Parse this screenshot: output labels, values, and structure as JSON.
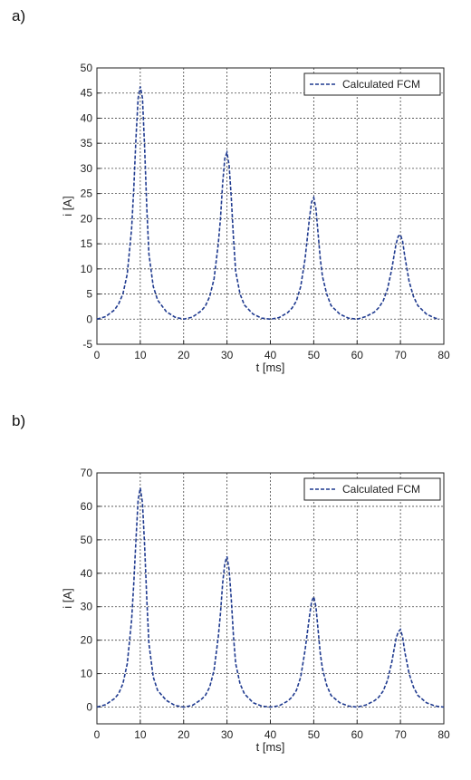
{
  "figure": {
    "panels": [
      {
        "label": "a)"
      },
      {
        "label": "b)"
      }
    ]
  },
  "chart_data": [
    {
      "type": "line",
      "title": "",
      "xlabel": "t [ms]",
      "ylabel": "i [A]",
      "xlim": [
        0,
        80
      ],
      "ylim": [
        -5,
        50
      ],
      "xticks": [
        0,
        10,
        20,
        30,
        40,
        50,
        60,
        70,
        80
      ],
      "yticks": [
        -5,
        0,
        5,
        10,
        15,
        20,
        25,
        30,
        35,
        40,
        45,
        50
      ],
      "grid": true,
      "legend_position": "top-right",
      "series": [
        {
          "name": "Calculated FCM",
          "color": "#1f3a8f",
          "style": "dashed",
          "x": [
            0,
            2,
            4,
            5,
            6,
            7,
            8,
            8.5,
            9,
            9.5,
            10,
            10.5,
            11,
            11.5,
            12,
            13,
            14,
            16,
            18,
            20,
            22,
            24,
            25,
            26,
            27,
            28,
            28.5,
            29,
            29.5,
            30,
            30.5,
            31,
            31.5,
            32,
            33,
            34,
            36,
            38,
            40,
            42,
            44,
            45,
            46,
            47,
            48,
            48.5,
            49,
            49.5,
            50,
            50.5,
            51,
            51.5,
            52,
            53,
            54,
            56,
            58,
            60,
            62,
            64,
            65,
            66,
            67,
            68,
            68.5,
            69,
            69.5,
            70,
            70.5,
            71,
            72,
            73,
            74,
            76,
            78,
            79
          ],
          "y": [
            0,
            0.5,
            1.8,
            3,
            5,
            9,
            18,
            26,
            36,
            44,
            46.3,
            44,
            34,
            22,
            13,
            6.5,
            3.8,
            1.5,
            0.4,
            0,
            0.4,
            1.6,
            2.6,
            4.5,
            8,
            15,
            20,
            27,
            32,
            33.2,
            30.5,
            24,
            16,
            9.5,
            5,
            2.8,
            1,
            0.2,
            0,
            0.3,
            1.3,
            2.2,
            3.6,
            6.5,
            12,
            16,
            20,
            23.3,
            24.2,
            22,
            17,
            12,
            8.5,
            5,
            2.7,
            1,
            0.2,
            0,
            0.5,
            1.4,
            2.3,
            3.6,
            6,
            10,
            12.5,
            15,
            16.5,
            16.8,
            15.5,
            12.5,
            7.5,
            4.5,
            2.7,
            1,
            0.2,
            0
          ]
        }
      ]
    },
    {
      "type": "line",
      "title": "",
      "xlabel": "t [ms]",
      "ylabel": "i [A]",
      "xlim": [
        0,
        80
      ],
      "ylim": [
        -5,
        70
      ],
      "xticks": [
        0,
        10,
        20,
        30,
        40,
        50,
        60,
        70,
        80
      ],
      "yticks": [
        0,
        10,
        20,
        30,
        40,
        50,
        60,
        70
      ],
      "grid": true,
      "legend_position": "top-right",
      "series": [
        {
          "name": "Calculated FCM",
          "color": "#1f3a8f",
          "style": "dashed",
          "x": [
            0,
            2,
            4,
            5,
            6,
            7,
            8,
            8.5,
            9,
            9.5,
            10,
            10.5,
            11,
            11.5,
            12,
            13,
            14,
            16,
            18,
            20,
            22,
            24,
            25,
            26,
            27,
            28,
            28.5,
            29,
            29.5,
            30,
            30.5,
            31,
            31.5,
            32,
            33,
            34,
            36,
            38,
            40,
            42,
            44,
            45,
            46,
            47,
            48,
            48.5,
            49,
            49.5,
            50,
            50.5,
            51,
            51.5,
            52,
            53,
            54,
            56,
            58,
            60,
            62,
            64,
            65,
            66,
            67,
            68,
            68.5,
            69,
            69.5,
            70,
            70.5,
            71,
            72,
            73,
            74,
            76,
            78,
            80
          ],
          "y": [
            0,
            0.7,
            2.5,
            4,
            7,
            13,
            26,
            37,
            50,
            62,
            65.5,
            61,
            48,
            32,
            19,
            9,
            5,
            2,
            0.5,
            0,
            0.5,
            2.2,
            3.5,
            6,
            11,
            21,
            28,
            37,
            43,
            45,
            41,
            32,
            21,
            13,
            7,
            4,
            1.3,
            0.3,
            0,
            0.4,
            1.8,
            3,
            5,
            9,
            17,
            22,
            27,
            31.5,
            33,
            30,
            23,
            16,
            11.5,
            6.5,
            3.5,
            1.3,
            0.3,
            0,
            0.6,
            1.9,
            3,
            4.8,
            8,
            13.5,
            17,
            20.5,
            22.5,
            23.2,
            21,
            16.5,
            10,
            6,
            3.5,
            1.3,
            0.3,
            0
          ]
        }
      ]
    }
  ]
}
